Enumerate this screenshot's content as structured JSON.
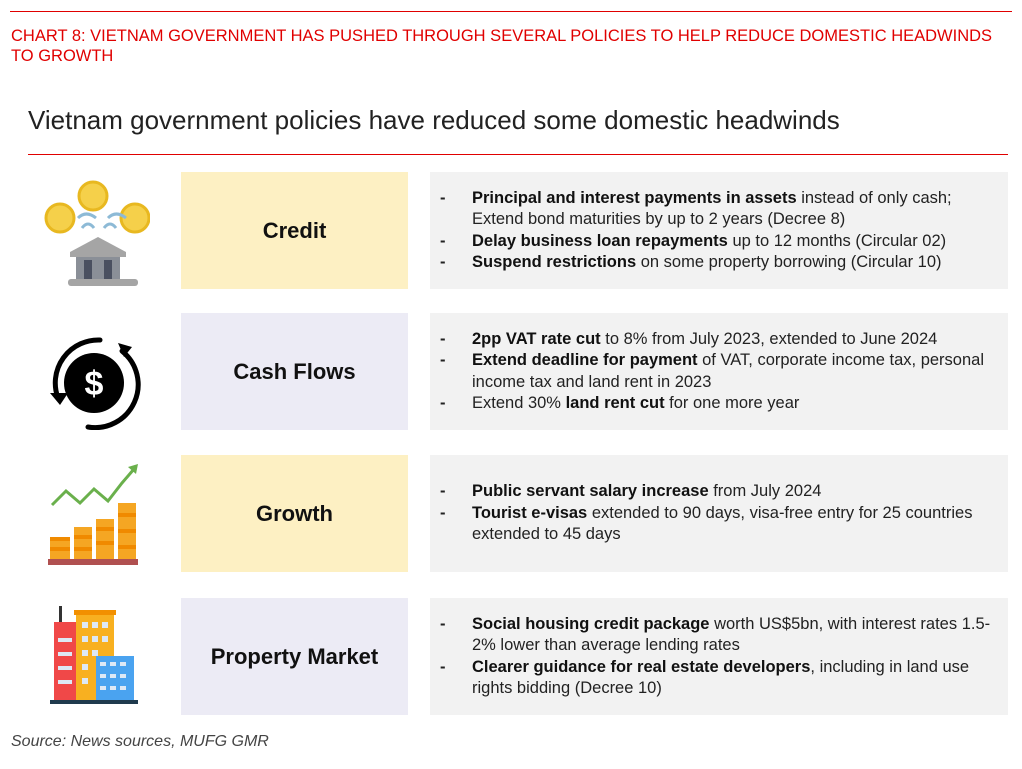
{
  "chart_title": "CHART 8: VIETNAM GOVERNMENT HAS PUSHED THROUGH SEVERAL POLICIES TO HELP REDUCE DOMESTIC HEADWINDS TO GROWTH",
  "subtitle": "Vietnam government policies have reduced some domestic headwinds",
  "rows": [
    {
      "label": "Credit",
      "icon": "bank-coins-icon",
      "bullets": [
        {
          "bold": "Principal and interest payments in assets",
          "text": " instead of only cash; Extend bond maturities by up to 2 years (Decree 8)"
        },
        {
          "bold": "Delay business loan repayments",
          "text": " up to 12 months (Circular 02)"
        },
        {
          "bold": "Suspend restrictions",
          "text": " on some property borrowing (Circular 10)"
        }
      ]
    },
    {
      "label": "Cash Flows",
      "icon": "dollar-cycle-icon",
      "bullets": [
        {
          "bold": "2pp VAT rate cut",
          "text": " to 8% from July 2023, extended to June 2024"
        },
        {
          "bold": "Extend deadline for payment",
          "text": " of VAT, corporate income tax, personal income tax and land rent in 2023"
        },
        {
          "pre": "Extend 30% ",
          "bold": "land rent cut",
          "text": " for one more year"
        }
      ]
    },
    {
      "label": "Growth",
      "icon": "growth-coins-icon",
      "bullets": [
        {
          "bold": "Public servant salary increase",
          "text": " from July 2024"
        },
        {
          "bold": "Tourist e-visas",
          "text": " extended to 90 days, visa-free entry for 25 countries extended to 45 days"
        }
      ]
    },
    {
      "label": "Property Market",
      "icon": "buildings-icon",
      "bullets": [
        {
          "bold": "Social housing credit package",
          "text": " worth US$5bn, with interest rates 1.5-2% lower than average lending rates"
        },
        {
          "bold": "Clearer guidance for real estate developers",
          "text": ", including in land use rights bidding (Decree 10)"
        }
      ]
    }
  ],
  "dash": "-",
  "source": "Source: News sources, MUFG GMR"
}
